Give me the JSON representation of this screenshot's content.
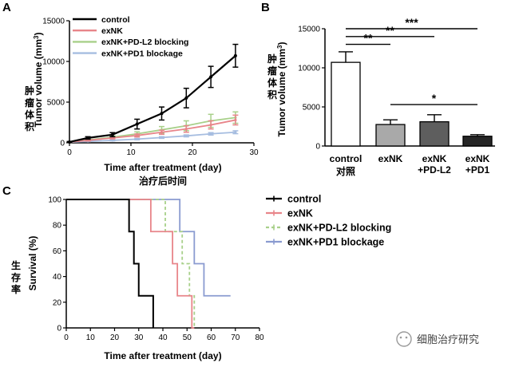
{
  "chart_data": [
    {
      "panel": "A",
      "type": "line",
      "xlabel": "Time after treatment (day)",
      "xlabel_cn": "治疗后时间",
      "ylabel": "Tumor volume (mm³)",
      "ylabel_parts": [
        "Tumor volume (mm",
        "3",
        ")"
      ],
      "ylabel_cn": "肿瘤体积",
      "xlim": [
        0,
        30
      ],
      "ylim": [
        0,
        15000
      ],
      "xticks": [
        0,
        10,
        20,
        30
      ],
      "yticks": [
        0,
        5000,
        10000,
        15000
      ],
      "legend_position": "top-left",
      "series": [
        {
          "name": "control",
          "color": "#000000",
          "x": [
            0,
            3,
            7,
            11,
            15,
            19,
            23,
            27
          ],
          "y": [
            100,
            600,
            1000,
            2300,
            3600,
            5500,
            8100,
            10700
          ],
          "err": [
            60,
            150,
            250,
            600,
            800,
            1200,
            1300,
            1400
          ]
        },
        {
          "name": "exNK",
          "color": "#e8858a",
          "x": [
            0,
            3,
            7,
            11,
            15,
            19,
            23,
            27
          ],
          "y": [
            100,
            300,
            600,
            900,
            1300,
            1700,
            2200,
            2800
          ],
          "err": [
            40,
            80,
            120,
            180,
            250,
            400,
            500,
            600
          ]
        },
        {
          "name": "exNK+PD-L2 blocking",
          "color": "#a8d08a",
          "x": [
            0,
            3,
            7,
            11,
            15,
            19,
            23,
            27
          ],
          "y": [
            100,
            350,
            700,
            1100,
            1600,
            2100,
            2700,
            3100
          ],
          "err": [
            40,
            90,
            150,
            250,
            400,
            600,
            800,
            700
          ]
        },
        {
          "name": "exNK+PD1 blockage",
          "color": "#a6bde0",
          "x": [
            0,
            3,
            7,
            11,
            15,
            19,
            23,
            27
          ],
          "y": [
            80,
            180,
            300,
            450,
            650,
            850,
            1100,
            1300
          ],
          "err": [
            30,
            50,
            60,
            80,
            100,
            120,
            150,
            180
          ]
        }
      ]
    },
    {
      "panel": "B",
      "type": "bar",
      "ylabel": "Tumor volume (mm³)",
      "ylabel_parts": [
        "Tumor volume (mm",
        "3",
        ")"
      ],
      "ylabel_cn": "肿瘤体积",
      "ylim": [
        0,
        15000
      ],
      "yticks": [
        0,
        5000,
        10000,
        15000
      ],
      "categories": [
        {
          "lines": [
            "control"
          ],
          "sub_cn": "对照",
          "value": 10700,
          "err": 1350,
          "fill": "#ffffff"
        },
        {
          "lines": [
            "exNK"
          ],
          "sub_cn": "",
          "value": 2750,
          "err": 600,
          "fill": "#a9a9a9"
        },
        {
          "lines": [
            "exNK",
            "+PD-L2"
          ],
          "sub_cn": "",
          "value": 3100,
          "err": 900,
          "fill": "#5e5e5e"
        },
        {
          "lines": [
            "exNK",
            "+PD1"
          ],
          "sub_cn": "",
          "value": 1250,
          "err": 200,
          "fill": "#262626"
        }
      ],
      "significance": [
        {
          "from": 0,
          "to": 1,
          "label": "**",
          "y": 13000
        },
        {
          "from": 0,
          "to": 2,
          "label": "**",
          "y": 14000
        },
        {
          "from": 0,
          "to": 3,
          "label": "***",
          "y": 15000
        },
        {
          "from": 1,
          "to": 3,
          "label": "*",
          "y": 5300
        }
      ]
    },
    {
      "panel": "C",
      "type": "line",
      "subtype": "survival-step",
      "xlabel": "Time after treatment (day)",
      "ylabel": "Survival (%)",
      "ylabel_cn": "生存率",
      "xlim": [
        0,
        80
      ],
      "ylim": [
        0,
        100
      ],
      "xticks": [
        0,
        10,
        20,
        30,
        40,
        50,
        60,
        70,
        80
      ],
      "yticks": [
        0,
        20,
        40,
        60,
        80,
        100
      ],
      "legend_position": "right",
      "series": [
        {
          "name": "control",
          "color": "#000000",
          "dash": "",
          "x": [
            0,
            26,
            28,
            30,
            36
          ],
          "y": [
            100,
            75,
            50,
            25,
            0
          ]
        },
        {
          "name": "exNK",
          "color": "#e8858a",
          "dash": "",
          "x": [
            0,
            35,
            44,
            46,
            52,
            53
          ],
          "y": [
            100,
            75,
            50,
            25,
            0,
            0
          ]
        },
        {
          "name": "exNK+PD-L2 blocking",
          "color": "#a8d08a",
          "dash": "4,3",
          "x": [
            0,
            41,
            48,
            51,
            53
          ],
          "y": [
            100,
            75,
            50,
            25,
            0
          ]
        },
        {
          "name": "exNK+PD1 blockage",
          "color": "#8a9bd0",
          "dash": "",
          "x": [
            0,
            47,
            53,
            57,
            68
          ],
          "y": [
            100,
            75,
            50,
            25,
            25
          ]
        }
      ]
    }
  ],
  "panels": {
    "a": "A",
    "b": "B",
    "c": "C"
  },
  "watermark": "细胞治疗研究"
}
